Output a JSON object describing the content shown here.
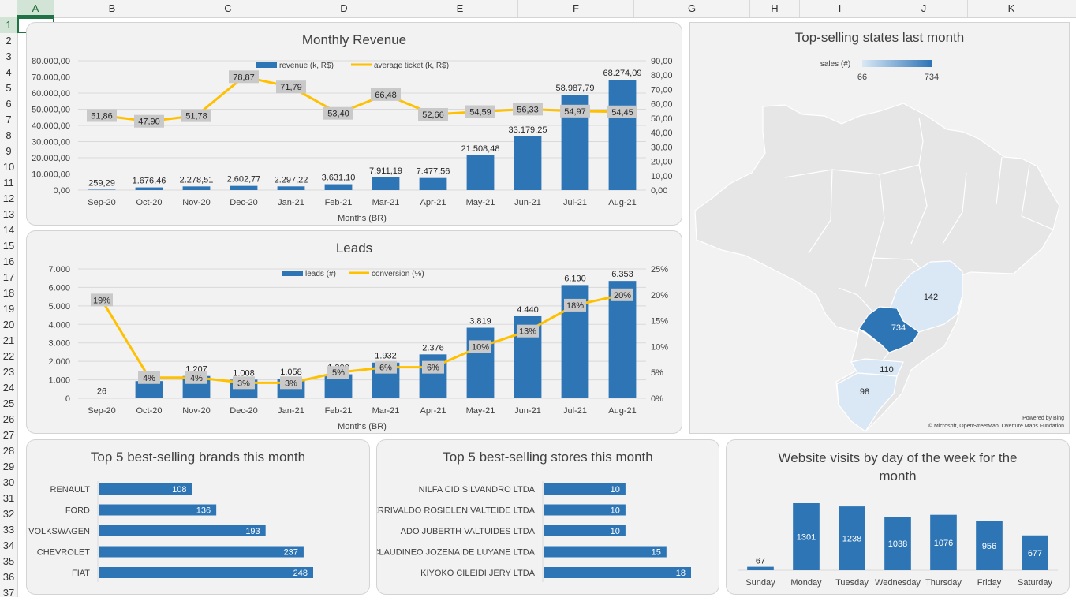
{
  "spreadsheet": {
    "columns": [
      "A",
      "B",
      "C",
      "D",
      "E",
      "F",
      "G",
      "H",
      "I",
      "J",
      "K"
    ],
    "rows": [
      "1",
      "2",
      "3",
      "4",
      "5",
      "6",
      "7",
      "8",
      "9",
      "10",
      "11",
      "12",
      "13",
      "14",
      "15",
      "16",
      "17",
      "18",
      "19",
      "20",
      "21",
      "22",
      "23",
      "24",
      "25",
      "26",
      "27",
      "28",
      "29",
      "30",
      "31",
      "32",
      "33",
      "34",
      "35",
      "36",
      "37"
    ],
    "active_cell": "A1"
  },
  "colors": {
    "bar": "#2e75b6",
    "line": "#ffc000",
    "label_box": "#c9c9c9",
    "map_highlight": "#2e75b6",
    "map_light": "#dae8f6",
    "map_base": "#e6e6e6"
  },
  "revenue_panel": {
    "title": "Monthly Revenue",
    "legend_bar": "revenue (k, R$)",
    "legend_line": "average ticket (k, R$)",
    "xlabel": "Months (BR)",
    "y_ticks": [
      "80.000,00",
      "70.000,00",
      "60.000,00",
      "50.000,00",
      "40.000,00",
      "30.000,00",
      "20.000,00",
      "10.000,00",
      "0,00"
    ],
    "y2_ticks": [
      "90,00",
      "80,00",
      "70,00",
      "60,00",
      "50,00",
      "40,00",
      "30,00",
      "20,00",
      "10,00",
      "0,00"
    ]
  },
  "leads_panel": {
    "title": "Leads",
    "legend_bar": "leads (#)",
    "legend_line": "conversion (%)",
    "xlabel": "Months (BR)",
    "y_ticks": [
      "7.000",
      "6.000",
      "5.000",
      "4.000",
      "3.000",
      "2.000",
      "1.000",
      "0"
    ],
    "y2_ticks": [
      "25%",
      "20%",
      "15%",
      "10%",
      "5%",
      "0%"
    ]
  },
  "brands_panel": {
    "title": "Top 5 best-selling brands this month"
  },
  "stores_panel": {
    "title": "Top 5 best-selling stores this month"
  },
  "visits_panel": {
    "title": "Website visits by day of the week for the month"
  },
  "map_panel": {
    "title": "Top-selling states last month",
    "legend_title": "sales (#)",
    "legend_min": "66",
    "legend_max": "734",
    "credit_1": "Powered by Bing",
    "credit_2": "© Microsoft, OpenStreetMap, Overture Maps Fundation",
    "state_labels": [
      "142",
      "734",
      "110",
      "98"
    ]
  },
  "chart_data": [
    {
      "type": "bar",
      "title": "Monthly Revenue",
      "categories": [
        "Sep-20",
        "Oct-20",
        "Nov-20",
        "Dec-20",
        "Jan-21",
        "Feb-21",
        "Mar-21",
        "Apr-21",
        "May-21",
        "Jun-21",
        "Jul-21",
        "Aug-21"
      ],
      "series": [
        {
          "name": "revenue (k, R$)",
          "type": "bar",
          "axis": "left",
          "values": [
            259.29,
            1676.46,
            2278.51,
            2602.77,
            2297.22,
            3631.1,
            7911.19,
            7477.56,
            21508.48,
            33179.25,
            58987.79,
            68274.09
          ],
          "labels": [
            "259,29",
            "1.676,46",
            "2.278,51",
            "2.602,77",
            "2.297,22",
            "3.631,10",
            "7.911,19",
            "7.477,56",
            "21.508,48",
            "33.179,25",
            "58.987,79",
            "68.274,09"
          ]
        },
        {
          "name": "average ticket (k, R$)",
          "type": "line",
          "axis": "right",
          "values": [
            51.86,
            47.9,
            51.78,
            78.87,
            71.79,
            53.4,
            66.48,
            52.66,
            54.59,
            56.33,
            54.97,
            54.45
          ],
          "labels": [
            "51,86",
            "47,90",
            "51,78",
            "78,87",
            "71,79",
            "53,40",
            "66,48",
            "52,66",
            "54,59",
            "56,33",
            "54,97",
            "54,45"
          ]
        }
      ],
      "xlabel": "Months (BR)",
      "ylim": [
        0,
        80000
      ],
      "y2lim": [
        0,
        90
      ],
      "legend": "top",
      "grid": true
    },
    {
      "type": "bar",
      "title": "Leads",
      "categories": [
        "Sep-20",
        "Oct-20",
        "Nov-20",
        "Dec-20",
        "Jan-21",
        "Feb-21",
        "Mar-21",
        "Apr-21",
        "May-21",
        "Jun-21",
        "Jul-21",
        "Aug-21"
      ],
      "series": [
        {
          "name": "leads (#)",
          "type": "bar",
          "axis": "left",
          "values": [
            26,
            931,
            1207,
            1008,
            1058,
            1300,
            1932,
            2376,
            3819,
            4440,
            6130,
            6353
          ],
          "labels": [
            "26",
            "931",
            "1.207",
            "1.008",
            "1.058",
            "1.300",
            "1.932",
            "2.376",
            "3.819",
            "4.440",
            "6.130",
            "6.353"
          ]
        },
        {
          "name": "conversion (%)",
          "type": "line",
          "axis": "right",
          "values": [
            19,
            4,
            4,
            3,
            3,
            5,
            6,
            6,
            10,
            13,
            18,
            20
          ],
          "labels": [
            "19%",
            "4%",
            "4%",
            "3%",
            "3%",
            "5%",
            "6%",
            "6%",
            "10%",
            "13%",
            "18%",
            "20%"
          ]
        }
      ],
      "xlabel": "Months (BR)",
      "ylim": [
        0,
        7000
      ],
      "y2lim": [
        0,
        25
      ],
      "legend": "top",
      "grid": true
    },
    {
      "type": "bar",
      "orientation": "horizontal",
      "title": "Top 5 best-selling brands this month",
      "categories": [
        "RENAULT",
        "FORD",
        "VOLKSWAGEN",
        "CHEVROLET",
        "FIAT"
      ],
      "values": [
        108,
        136,
        193,
        237,
        248
      ]
    },
    {
      "type": "bar",
      "orientation": "horizontal",
      "title": "Top 5 best-selling stores this month",
      "categories": [
        "NILFA CID SILVANDRO LTDA",
        "GERRIVALDO ROSIELEN VALTEIDE LTDA",
        "ADO JUBERTH VALTUIDES LTDA",
        "CLAUDINEO JOZENAIDE LUYANE LTDA",
        "KIYOKO CILEIDI JERY LTDA"
      ],
      "values": [
        10,
        10,
        10,
        15,
        18
      ]
    },
    {
      "type": "bar",
      "title": "Website visits by day of the week for the month",
      "categories": [
        "Sunday",
        "Monday",
        "Tuesday",
        "Wednesday",
        "Thursday",
        "Friday",
        "Saturday"
      ],
      "values": [
        67,
        1301,
        1238,
        1038,
        1076,
        956,
        677
      ]
    }
  ]
}
